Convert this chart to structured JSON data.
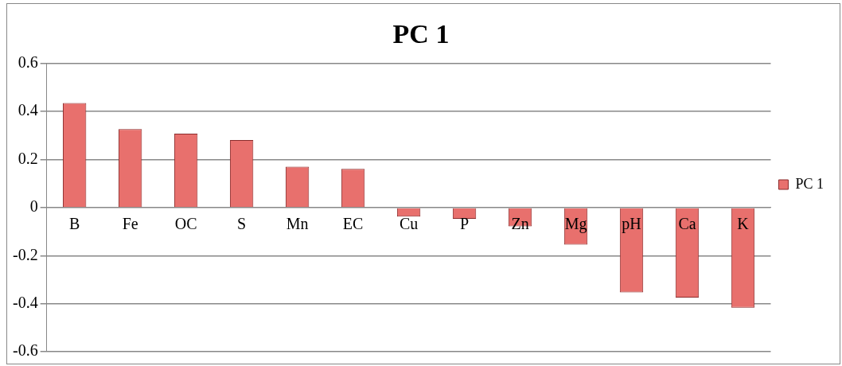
{
  "chart_data": {
    "type": "bar",
    "title": "PC 1",
    "categories": [
      "B",
      "Fe",
      "OC",
      "S",
      "Mn",
      "EC",
      "Cu",
      "P",
      "Zn",
      "Mg",
      "pH",
      "Ca",
      "K"
    ],
    "series": [
      {
        "name": "PC 1",
        "color": "#e8706d",
        "values": [
          0.435,
          0.327,
          0.308,
          0.281,
          0.17,
          0.161,
          -0.038,
          -0.047,
          -0.078,
          -0.154,
          -0.353,
          -0.375,
          -0.417
        ]
      }
    ],
    "ylim": [
      -0.6,
      0.6
    ],
    "yticks": [
      -0.6,
      -0.4,
      -0.2,
      0,
      0.2,
      0.4,
      0.6
    ],
    "grid": "y",
    "legend": "right"
  }
}
